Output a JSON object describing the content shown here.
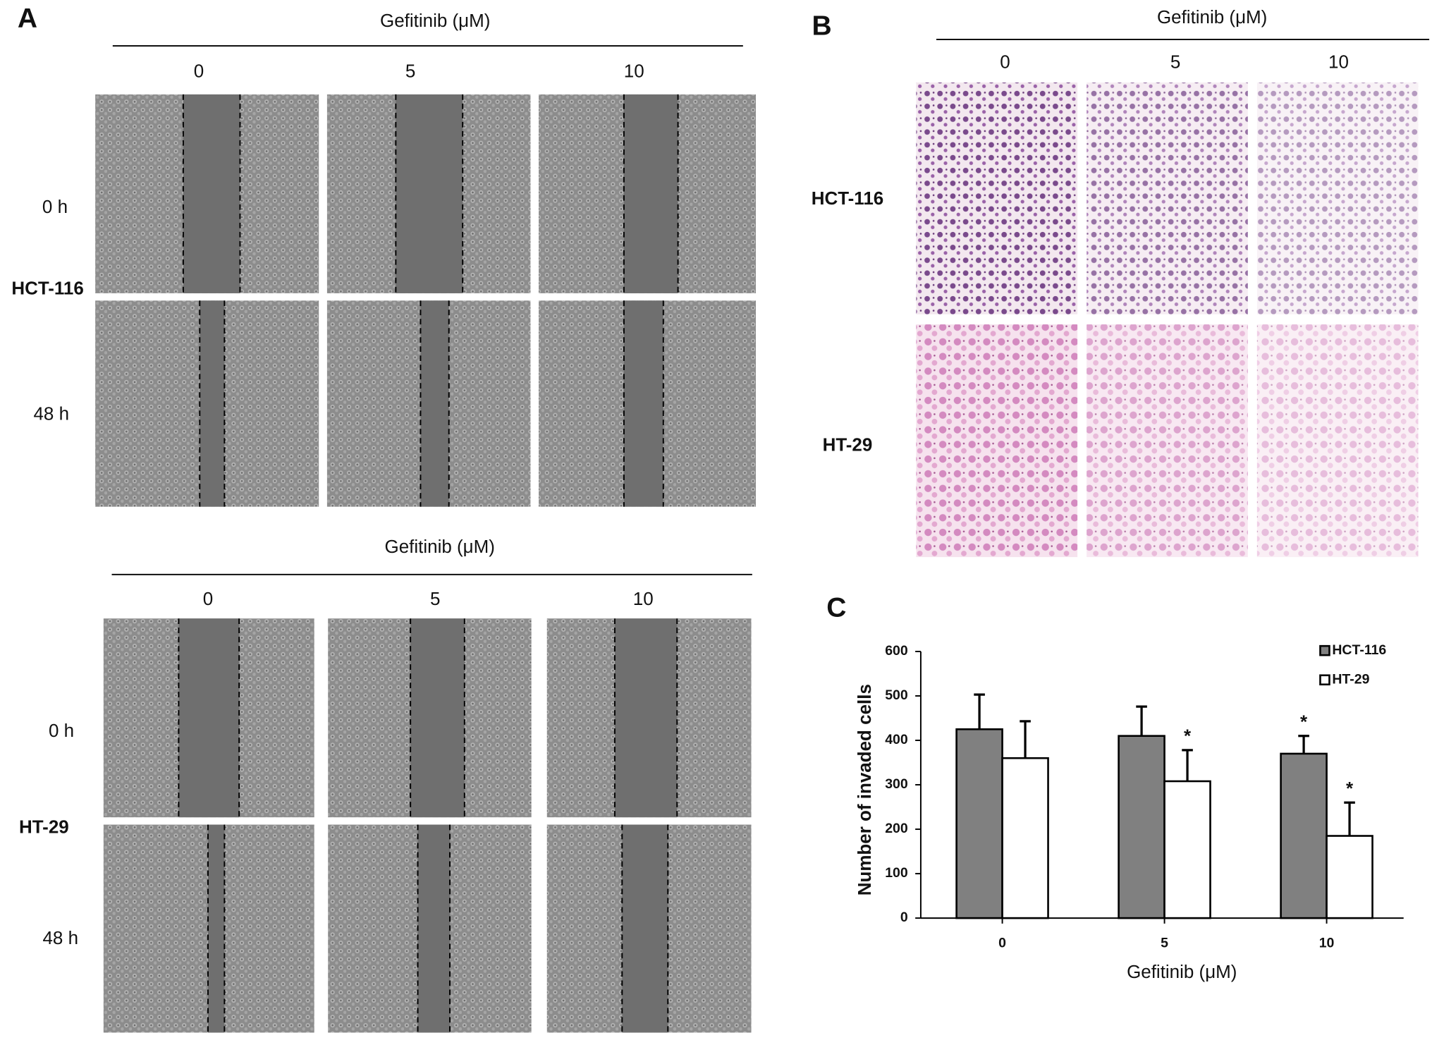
{
  "panel_a": {
    "label": "A",
    "groups": [
      {
        "treatment_label": "Gefitinib (μM)",
        "doses": [
          "0",
          "5",
          "10"
        ],
        "cell_line": "HCT-116",
        "timepoints": [
          "0 h",
          "48 h"
        ]
      },
      {
        "treatment_label": "Gefitinib (μM)",
        "doses": [
          "0",
          "5",
          "10"
        ],
        "cell_line": "HT-29",
        "timepoints": [
          "0 h",
          "48 h"
        ]
      }
    ]
  },
  "panel_b": {
    "label": "B",
    "treatment_label": "Gefitinib (μM)",
    "doses": [
      "0",
      "5",
      "10"
    ],
    "cell_lines": [
      "HCT-116",
      "HT-29"
    ]
  },
  "chart_data": {
    "type": "bar",
    "panel_label": "C",
    "x_label": "Gefitinib (μM)",
    "y_label": "Number of invaded cells",
    "categories": [
      "0",
      "5",
      "10"
    ],
    "series": [
      {
        "name": "HCT-116",
        "color": "#808080",
        "values": [
          425,
          410,
          370
        ],
        "errors": [
          78,
          66,
          40
        ]
      },
      {
        "name": "HT-29",
        "color": "#ffffff",
        "values": [
          360,
          308,
          185
        ],
        "errors": [
          83,
          70,
          75
        ]
      }
    ],
    "annotations": [
      {
        "text": "*",
        "category": "5",
        "series": "HT-29"
      },
      {
        "text": "*",
        "category": "10",
        "series": "HCT-116"
      },
      {
        "text": "*",
        "category": "10",
        "series": "HT-29"
      }
    ],
    "ylim": [
      0,
      600
    ],
    "yticks": [
      0,
      100,
      200,
      300,
      400,
      500,
      600
    ]
  }
}
